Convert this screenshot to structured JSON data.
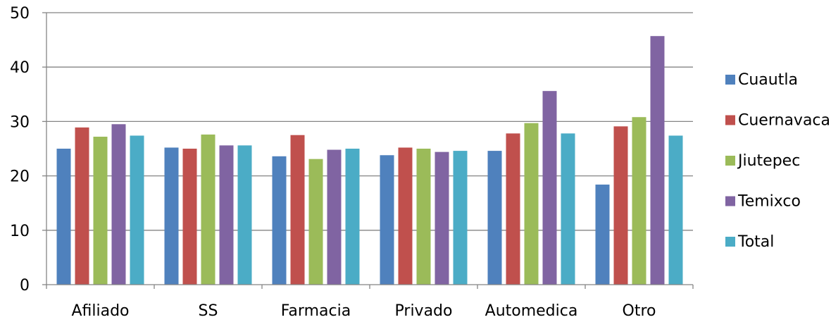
{
  "chart_data": {
    "type": "bar",
    "categories": [
      "Afiliado",
      "SS",
      "Farmacia",
      "Privado",
      "Automedica",
      "Otro"
    ],
    "series": [
      {
        "name": "Cuautla",
        "color": "#4F81BD",
        "values": [
          25.0,
          25.2,
          23.6,
          23.8,
          24.6,
          18.4
        ]
      },
      {
        "name": "Cuernavaca",
        "color": "#C0504D",
        "values": [
          28.9,
          25.0,
          27.5,
          25.2,
          27.8,
          29.1
        ]
      },
      {
        "name": "Jiutepec",
        "color": "#9BBB59",
        "values": [
          27.2,
          27.6,
          23.1,
          25.0,
          29.7,
          30.8
        ]
      },
      {
        "name": "Temixco",
        "color": "#8064A2",
        "values": [
          29.5,
          25.6,
          24.8,
          24.4,
          35.6,
          45.7
        ]
      },
      {
        "name": "Total",
        "color": "#4BACC6",
        "values": [
          27.4,
          25.6,
          25.0,
          24.6,
          27.8,
          27.4
        ]
      }
    ],
    "ylim": [
      0,
      50
    ],
    "yticks": [
      0,
      10,
      20,
      30,
      40,
      50
    ],
    "grid": "horizontal",
    "legend": "right",
    "title": "",
    "xlabel": "",
    "ylabel": ""
  }
}
